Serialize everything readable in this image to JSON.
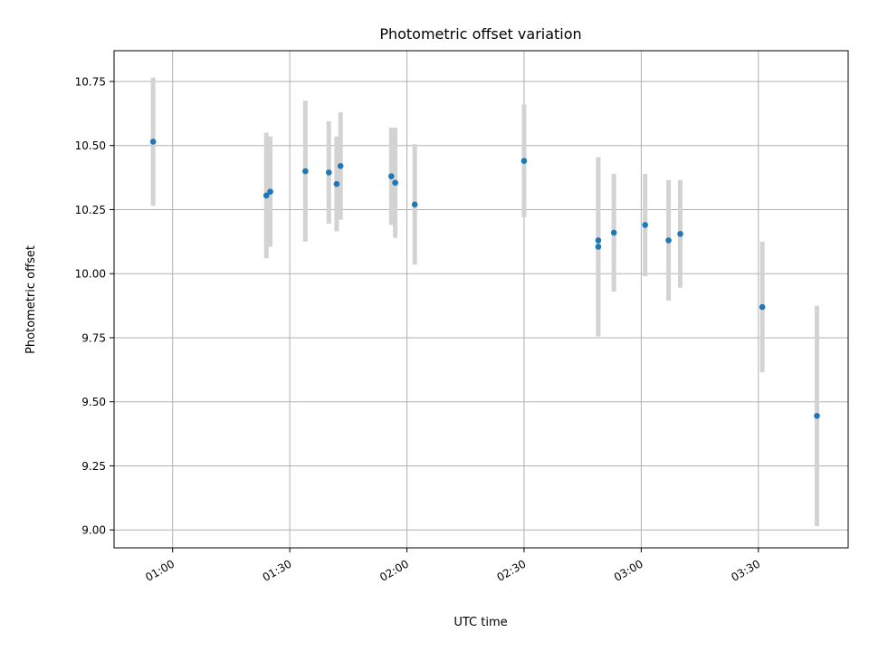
{
  "chart_data": {
    "type": "scatter",
    "title": "Photometric offset variation",
    "xlabel": "UTC time",
    "ylabel": "Photometric offset",
    "x_tick_labels": [
      "01:00",
      "01:30",
      "02:00",
      "02:30",
      "03:00",
      "03:30"
    ],
    "x_ticks": [
      "01:00",
      "01:30",
      "02:00",
      "02:30",
      "03:00",
      "03:30"
    ],
    "y_ticks": [
      9.0,
      9.25,
      9.5,
      9.75,
      10.0,
      10.25,
      10.5,
      10.75
    ],
    "y_tick_labels": [
      "9.00",
      "9.25",
      "9.50",
      "9.75",
      "10.00",
      "10.25",
      "10.50",
      "10.75"
    ],
    "xlim": [
      "00:45",
      "03:53"
    ],
    "ylim": [
      8.93,
      10.87
    ],
    "grid": true,
    "colors": {
      "points": "#1f77b4",
      "errorbars": "#d3d3d3",
      "grid": "#b0b0b0"
    },
    "points": [
      {
        "x": "00:55",
        "y": 10.515,
        "yerr": 0.25
      },
      {
        "x": "01:24",
        "y": 10.305,
        "yerr": 0.245
      },
      {
        "x": "01:25",
        "y": 10.32,
        "yerr": 0.215
      },
      {
        "x": "01:34",
        "y": 10.4,
        "yerr": 0.275
      },
      {
        "x": "01:40",
        "y": 10.395,
        "yerr": 0.2
      },
      {
        "x": "01:42",
        "y": 10.35,
        "yerr": 0.185
      },
      {
        "x": "01:43",
        "y": 10.42,
        "yerr": 0.21
      },
      {
        "x": "01:56",
        "y": 10.38,
        "yerr": 0.19
      },
      {
        "x": "01:57",
        "y": 10.355,
        "yerr": 0.215
      },
      {
        "x": "02:02",
        "y": 10.27,
        "yerr": 0.235
      },
      {
        "x": "02:30",
        "y": 10.44,
        "yerr": 0.22
      },
      {
        "x": "02:49",
        "y": 10.105,
        "yerr": 0.35
      },
      {
        "x": "02:49",
        "y": 10.13,
        "yerr": 0.29
      },
      {
        "x": "02:53",
        "y": 10.16,
        "yerr": 0.23
      },
      {
        "x": "03:01",
        "y": 10.19,
        "yerr": 0.2
      },
      {
        "x": "03:07",
        "y": 10.13,
        "yerr": 0.235
      },
      {
        "x": "03:10",
        "y": 10.155,
        "yerr": 0.21
      },
      {
        "x": "03:31",
        "y": 9.87,
        "yerr": 0.255
      },
      {
        "x": "03:45",
        "y": 9.445,
        "yerr": 0.43
      }
    ]
  }
}
